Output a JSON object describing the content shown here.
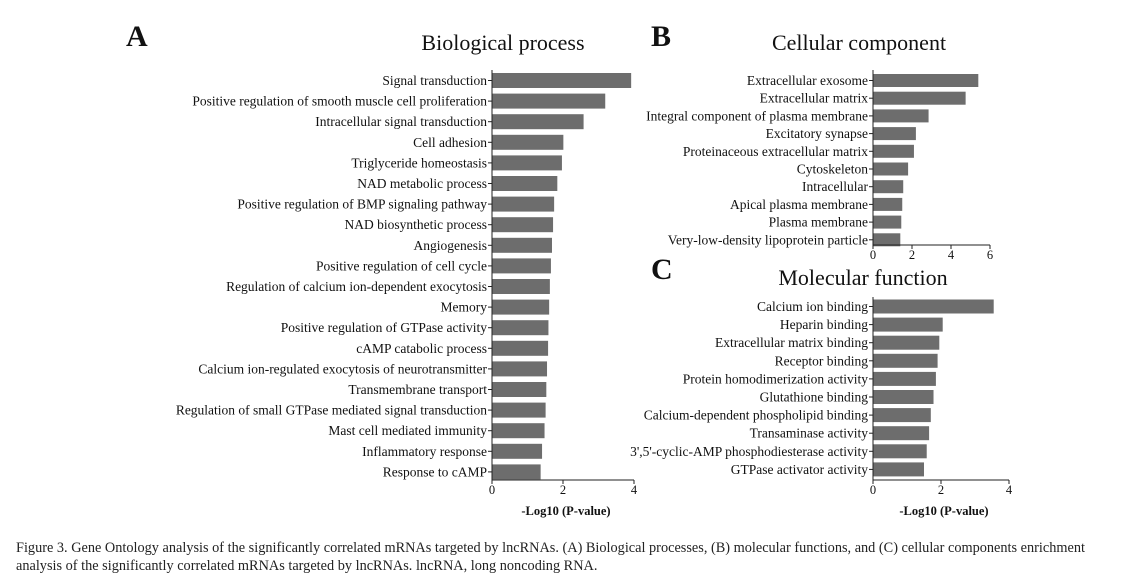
{
  "figure_caption": "Figure 3. Gene Ontology analysis of the significantly correlated mRNAs targeted by lncRNAs. (A) Biological processes, (B) molecular functions, and (C) cellular components enrichment analysis of the significantly correlated mRNAs targeted by lncRNAs. lncRNA, long noncoding RNA.",
  "colors": {
    "bar": "#6d6d6d",
    "axis": "#222222"
  },
  "chart_data": [
    {
      "id": "A",
      "type": "bar",
      "orientation": "horizontal",
      "panel_label": "A",
      "title": "Biological process",
      "xlabel": "-Log10 (P-value)",
      "xlim": [
        0,
        4
      ],
      "xticks": [
        0,
        2,
        4
      ],
      "categories": [
        "Signal transduction",
        "Positive regulation of smooth muscle cell proliferation",
        "Intracellular signal transduction",
        "Cell adhesion",
        "Triglyceride homeostasis",
        "NAD metabolic process",
        "Positive regulation of BMP signaling pathway",
        "NAD biosynthetic process",
        "Angiogenesis",
        "Positive regulation of cell cycle",
        "Regulation of calcium ion-dependent exocytosis",
        "Memory",
        "Positive regulation of GTPase activity",
        "cAMP catabolic process",
        "Calcium ion-regulated exocytosis of neurotransmitter",
        "Transmembrane transport",
        "Regulation of small GTPase mediated signal transduction",
        "Mast cell mediated immunity",
        "Inflammatory response",
        "Response to cAMP"
      ],
      "values": [
        3.92,
        3.19,
        2.58,
        2.01,
        1.97,
        1.84,
        1.75,
        1.72,
        1.69,
        1.66,
        1.63,
        1.61,
        1.59,
        1.58,
        1.55,
        1.53,
        1.51,
        1.48,
        1.41,
        1.37
      ]
    },
    {
      "id": "B",
      "type": "bar",
      "orientation": "horizontal",
      "panel_label": "B",
      "title": "Cellular component",
      "xlabel": "",
      "xlim": [
        0,
        6
      ],
      "xticks": [
        0,
        2,
        4,
        6
      ],
      "categories": [
        "Extracellular exosome",
        "Extracellular matrix",
        "Integral component of plasma membrane",
        "Excitatory synapse",
        "Proteinaceous extracellular matrix",
        "Cytoskeleton",
        "Intracellular",
        "Apical plasma membrane",
        "Plasma membrane",
        "Very-low-density lipoprotein particle"
      ],
      "values": [
        5.4,
        4.75,
        2.85,
        2.2,
        2.1,
        1.8,
        1.55,
        1.5,
        1.45,
        1.4
      ]
    },
    {
      "id": "C",
      "type": "bar",
      "orientation": "horizontal",
      "panel_label": "C",
      "title": "Molecular function",
      "xlabel": "-Log10 (P-value)",
      "xlim": [
        0,
        4
      ],
      "xticks": [
        0,
        2,
        4
      ],
      "categories": [
        "Calcium ion binding",
        "Heparin binding",
        "Extracellular matrix binding",
        "Receptor binding",
        "Protein homodimerization activity",
        "Glutathione binding",
        "Calcium-dependent phospholipid binding",
        "Transaminase activity",
        "3',5'-cyclic-AMP phosphodiesterase activity",
        "GTPase activator activity"
      ],
      "values": [
        3.55,
        2.05,
        1.95,
        1.9,
        1.85,
        1.78,
        1.7,
        1.65,
        1.58,
        1.5
      ]
    }
  ]
}
